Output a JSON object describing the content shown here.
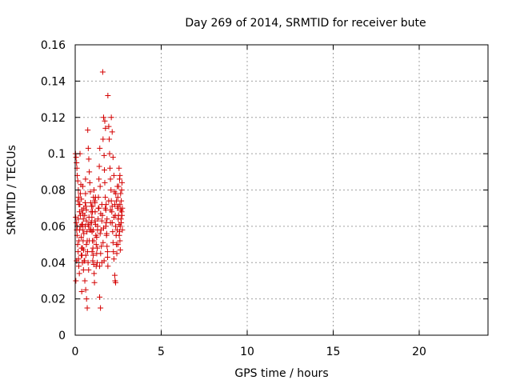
{
  "chart_data": {
    "type": "scatter",
    "title": "Day 269 of 2014, SRMTID for receiver bute",
    "xlabel": "GPS time / hours",
    "ylabel": "SRMTID / TECUs",
    "xlim": [
      0,
      24
    ],
    "ylim": [
      0,
      0.16
    ],
    "xticks": [
      0,
      5,
      10,
      15,
      20
    ],
    "xtick_labels": [
      "0",
      "5",
      "10",
      "15",
      "20"
    ],
    "yticks": [
      0,
      0.02,
      0.04,
      0.06,
      0.08,
      0.1,
      0.12,
      0.14,
      0.16
    ],
    "ytick_labels": [
      "0",
      "0.02",
      "0.04",
      "0.06",
      "0.08",
      "0.1",
      "0.12",
      "0.14",
      "0.16"
    ],
    "grid": true,
    "marker": "+",
    "color": "#d40000",
    "series": [
      {
        "name": "SRMTID",
        "points": [
          [
            0.02,
            0.1
          ],
          [
            0.05,
            0.098
          ],
          [
            0.08,
            0.095
          ],
          [
            0.1,
            0.092
          ],
          [
            0.12,
            0.088
          ],
          [
            0.15,
            0.085
          ],
          [
            0.18,
            0.08
          ],
          [
            0.2,
            0.076
          ],
          [
            0.22,
            0.072
          ],
          [
            0.25,
            0.068
          ],
          [
            0.03,
            0.065
          ],
          [
            0.06,
            0.062
          ],
          [
            0.09,
            0.058
          ],
          [
            0.11,
            0.055
          ],
          [
            0.14,
            0.05
          ],
          [
            0.17,
            0.046
          ],
          [
            0.19,
            0.042
          ],
          [
            0.21,
            0.038
          ],
          [
            0.24,
            0.034
          ],
          [
            0.04,
            0.03
          ],
          [
            0.27,
            0.072
          ],
          [
            0.3,
            0.066
          ],
          [
            0.32,
            0.06
          ],
          [
            0.35,
            0.054
          ],
          [
            0.37,
            0.048
          ],
          [
            0.4,
            0.044
          ],
          [
            0.42,
            0.04
          ],
          [
            0.45,
            0.058
          ],
          [
            0.47,
            0.064
          ],
          [
            0.5,
            0.07
          ],
          [
            0.28,
            0.1
          ],
          [
            0.33,
            0.083
          ],
          [
            0.36,
            0.075
          ],
          [
            0.39,
            0.069
          ],
          [
            0.43,
            0.061
          ],
          [
            0.46,
            0.052
          ],
          [
            0.49,
            0.047
          ],
          [
            0.52,
            0.041
          ],
          [
            0.38,
            0.024
          ],
          [
            0.48,
            0.036
          ],
          [
            0.55,
            0.066
          ],
          [
            0.58,
            0.073
          ],
          [
            0.6,
            0.078
          ],
          [
            0.62,
            0.071
          ],
          [
            0.65,
            0.063
          ],
          [
            0.68,
            0.057
          ],
          [
            0.7,
            0.052
          ],
          [
            0.72,
            0.046
          ],
          [
            0.75,
            0.04
          ],
          [
            0.78,
            0.036
          ],
          [
            0.56,
            0.03
          ],
          [
            0.61,
            0.025
          ],
          [
            0.66,
            0.02
          ],
          [
            0.7,
            0.015
          ],
          [
            0.73,
            0.113
          ],
          [
            0.76,
            0.103
          ],
          [
            0.79,
            0.097
          ],
          [
            0.82,
            0.09
          ],
          [
            0.85,
            0.084
          ],
          [
            0.88,
            0.079
          ],
          [
            0.9,
            0.073
          ],
          [
            0.93,
            0.068
          ],
          [
            0.95,
            0.062
          ],
          [
            0.98,
            0.057
          ],
          [
            1.0,
            0.052
          ],
          [
            1.03,
            0.048
          ],
          [
            1.05,
            0.044
          ],
          [
            1.08,
            0.039
          ],
          [
            1.1,
            0.034
          ],
          [
            1.12,
            0.029
          ],
          [
            0.92,
            0.058
          ],
          [
            0.97,
            0.065
          ],
          [
            1.02,
            0.071
          ],
          [
            1.06,
            0.076
          ],
          [
            1.09,
            0.08
          ],
          [
            1.13,
            0.074
          ],
          [
            1.16,
            0.068
          ],
          [
            1.18,
            0.061
          ],
          [
            1.2,
            0.055
          ],
          [
            1.22,
            0.05
          ],
          [
            1.25,
            0.045
          ],
          [
            1.28,
            0.04
          ],
          [
            1.3,
            0.058
          ],
          [
            1.33,
            0.064
          ],
          [
            1.35,
            0.07
          ],
          [
            1.38,
            0.086
          ],
          [
            1.4,
            0.093
          ],
          [
            1.43,
            0.103
          ],
          [
            1.45,
            0.082
          ],
          [
            1.48,
            0.067
          ],
          [
            1.5,
            0.058
          ],
          [
            1.52,
            0.049
          ],
          [
            1.55,
            0.04
          ],
          [
            1.42,
            0.021
          ],
          [
            1.47,
            0.015
          ],
          [
            1.6,
            0.145
          ],
          [
            1.65,
            0.12
          ],
          [
            1.62,
            0.108
          ],
          [
            1.68,
            0.099
          ],
          [
            1.7,
            0.091
          ],
          [
            1.72,
            0.084
          ],
          [
            1.75,
            0.076
          ],
          [
            1.78,
            0.069
          ],
          [
            1.8,
            0.062
          ],
          [
            1.83,
            0.056
          ],
          [
            1.85,
            0.049
          ],
          [
            1.88,
            0.043
          ],
          [
            1.9,
            0.038
          ],
          [
            1.72,
            0.118
          ],
          [
            1.76,
            0.114
          ],
          [
            1.9,
            0.132
          ],
          [
            1.95,
            0.115
          ],
          [
            1.98,
            0.108
          ],
          [
            2.0,
            0.1
          ],
          [
            2.02,
            0.092
          ],
          [
            2.05,
            0.086
          ],
          [
            2.08,
            0.08
          ],
          [
            2.1,
            0.074
          ],
          [
            2.13,
            0.068
          ],
          [
            2.15,
            0.062
          ],
          [
            2.18,
            0.057
          ],
          [
            2.2,
            0.051
          ],
          [
            2.22,
            0.046
          ],
          [
            2.25,
            0.042
          ],
          [
            2.1,
            0.12
          ],
          [
            2.15,
            0.112
          ],
          [
            2.2,
            0.098
          ],
          [
            2.25,
            0.088
          ],
          [
            2.28,
            0.079
          ],
          [
            2.3,
            0.072
          ],
          [
            2.33,
            0.066
          ],
          [
            2.35,
            0.06
          ],
          [
            2.38,
            0.055
          ],
          [
            2.4,
            0.05
          ],
          [
            2.42,
            0.045
          ],
          [
            2.3,
            0.033
          ],
          [
            2.32,
            0.03
          ],
          [
            2.35,
            0.029
          ],
          [
            2.45,
            0.082
          ],
          [
            2.48,
            0.076
          ],
          [
            2.5,
            0.071
          ],
          [
            2.52,
            0.066
          ],
          [
            2.55,
            0.061
          ],
          [
            2.58,
            0.057
          ],
          [
            2.6,
            0.052
          ],
          [
            2.62,
            0.047
          ],
          [
            2.65,
            0.069
          ],
          [
            2.68,
            0.074
          ],
          [
            2.7,
            0.08
          ],
          [
            2.72,
            0.084
          ],
          [
            2.66,
            0.064
          ],
          [
            2.74,
            0.058
          ],
          [
            2.6,
            0.088
          ],
          [
            2.55,
            0.092
          ],
          [
            2.64,
            0.078
          ],
          [
            2.7,
            0.068
          ],
          [
            2.5,
            0.064
          ],
          [
            2.46,
            0.07
          ],
          [
            2.4,
            0.074
          ],
          [
            2.36,
            0.078
          ],
          [
            0.3,
            0.078
          ],
          [
            0.44,
            0.082
          ],
          [
            0.6,
            0.086
          ],
          [
            0.8,
            0.065
          ],
          [
            1.0,
            0.068
          ],
          [
            1.15,
            0.063
          ],
          [
            1.3,
            0.06
          ],
          [
            1.55,
            0.063
          ],
          [
            1.8,
            0.072
          ],
          [
            2.05,
            0.069
          ],
          [
            0.5,
            0.056
          ],
          [
            0.65,
            0.05
          ],
          [
            0.85,
            0.058
          ],
          [
            1.05,
            0.058
          ],
          [
            1.25,
            0.054
          ],
          [
            1.45,
            0.056
          ],
          [
            1.65,
            0.059
          ],
          [
            1.85,
            0.064
          ],
          [
            2.05,
            0.062
          ],
          [
            2.25,
            0.065
          ],
          [
            0.35,
            0.044
          ],
          [
            0.55,
            0.041
          ],
          [
            0.75,
            0.061
          ],
          [
            0.95,
            0.071
          ],
          [
            1.15,
            0.073
          ],
          [
            1.35,
            0.076
          ],
          [
            1.55,
            0.072
          ],
          [
            1.75,
            0.07
          ],
          [
            1.95,
            0.074
          ],
          [
            2.15,
            0.071
          ],
          [
            0.15,
            0.074
          ],
          [
            0.25,
            0.058
          ],
          [
            0.45,
            0.067
          ],
          [
            0.65,
            0.069
          ],
          [
            0.88,
            0.062
          ],
          [
            1.08,
            0.052
          ],
          [
            1.28,
            0.048
          ],
          [
            1.48,
            0.045
          ],
          [
            1.68,
            0.041
          ],
          [
            1.88,
            0.046
          ],
          [
            0.12,
            0.06
          ],
          [
            0.22,
            0.052
          ],
          [
            0.42,
            0.048
          ],
          [
            0.62,
            0.044
          ],
          [
            0.82,
            0.052
          ],
          [
            1.02,
            0.041
          ],
          [
            1.22,
            0.038
          ],
          [
            1.42,
            0.038
          ],
          [
            1.62,
            0.051
          ],
          [
            1.82,
            0.055
          ],
          [
            0.08,
            0.041
          ],
          [
            0.18,
            0.064
          ],
          [
            0.38,
            0.061
          ],
          [
            0.58,
            0.06
          ],
          [
            0.78,
            0.06
          ],
          [
            0.98,
            0.046
          ],
          [
            1.18,
            0.076
          ],
          [
            1.38,
            0.07
          ],
          [
            1.58,
            0.066
          ],
          [
            1.78,
            0.06
          ],
          [
            2.6,
            0.072
          ],
          [
            2.62,
            0.06
          ],
          [
            2.56,
            0.055
          ],
          [
            2.48,
            0.05
          ],
          [
            2.44,
            0.058
          ],
          [
            2.68,
            0.062
          ],
          [
            2.72,
            0.066
          ],
          [
            2.74,
            0.07
          ],
          [
            2.52,
            0.082
          ],
          [
            2.58,
            0.086
          ]
        ]
      }
    ]
  }
}
